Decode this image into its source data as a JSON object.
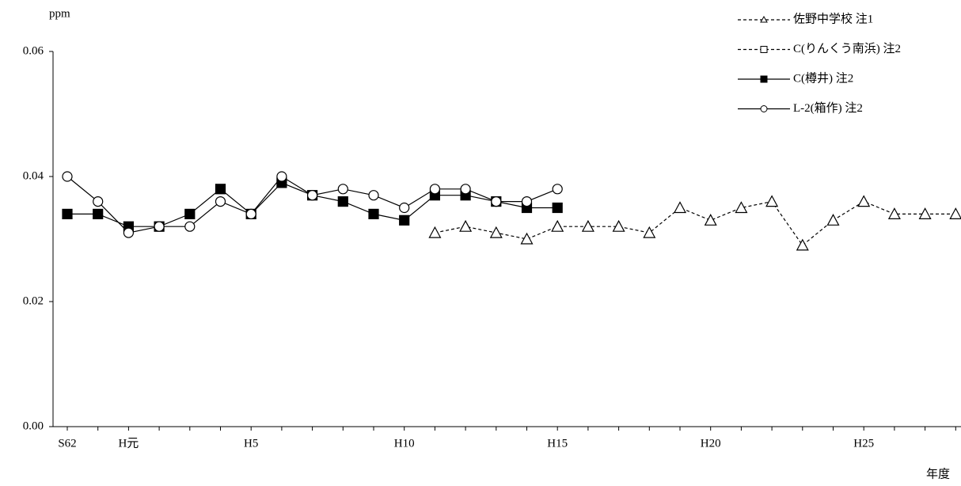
{
  "chart_data": {
    "type": "line",
    "y_label": "ppm",
    "x_label": "年度",
    "categories": [
      "S62",
      null,
      "H元",
      null,
      null,
      null,
      "H5",
      null,
      null,
      null,
      null,
      "H10",
      null,
      null,
      null,
      null,
      "H15",
      null,
      null,
      null,
      null,
      "H20",
      null,
      null,
      null,
      null,
      "H25",
      null,
      null,
      null
    ],
    "ylim": [
      0,
      0.06
    ],
    "yticks": [
      {
        "value": 0,
        "label": "0.00"
      },
      {
        "value": 0.02,
        "label": "0.02"
      },
      {
        "value": 0.04,
        "label": "0.04"
      },
      {
        "value": 0.06,
        "label": "0.06"
      }
    ],
    "legend": "top-right",
    "series": [
      {
        "name": "佐野中学校 注1",
        "color": "#000000",
        "line_style": "dashed",
        "marker": "triangle",
        "values": [
          null,
          null,
          null,
          null,
          null,
          null,
          null,
          null,
          null,
          null,
          null,
          null,
          0.031,
          0.032,
          0.031,
          0.03,
          0.032,
          0.032,
          0.032,
          0.031,
          0.035,
          0.033,
          0.035,
          0.036,
          0.029,
          0.033,
          0.036,
          0.034,
          0.034,
          0.034
        ]
      },
      {
        "name": "C(りんくう南浜) 注2",
        "color": "#000000",
        "line_style": "dashed",
        "marker": "square-open",
        "values": [
          null,
          null,
          null,
          null,
          null,
          null,
          null,
          null,
          null,
          null,
          null,
          null,
          null,
          null,
          null,
          null,
          null,
          null,
          null,
          null,
          null,
          null,
          null,
          null,
          null,
          null,
          null,
          null,
          null,
          null
        ]
      },
      {
        "name": "C(樽井) 注2",
        "color": "#000000",
        "line_style": "solid",
        "marker": "square",
        "values": [
          0.034,
          0.034,
          0.032,
          0.032,
          0.034,
          0.038,
          0.034,
          0.039,
          0.037,
          0.036,
          0.034,
          0.033,
          0.037,
          0.037,
          0.036,
          0.035,
          0.035,
          null,
          null,
          null,
          null,
          null,
          null,
          null,
          null,
          null,
          null,
          null,
          null,
          null
        ]
      },
      {
        "name": "L-2(箱作) 注2",
        "color": "#000000",
        "line_style": "solid",
        "marker": "circle",
        "values": [
          0.04,
          0.036,
          0.031,
          0.032,
          0.032,
          0.036,
          0.034,
          0.04,
          0.037,
          0.038,
          0.037,
          0.035,
          0.038,
          0.038,
          0.036,
          0.036,
          0.038,
          null,
          null,
          null,
          null,
          null,
          null,
          null,
          null,
          null,
          null,
          null,
          null,
          null
        ]
      }
    ]
  }
}
